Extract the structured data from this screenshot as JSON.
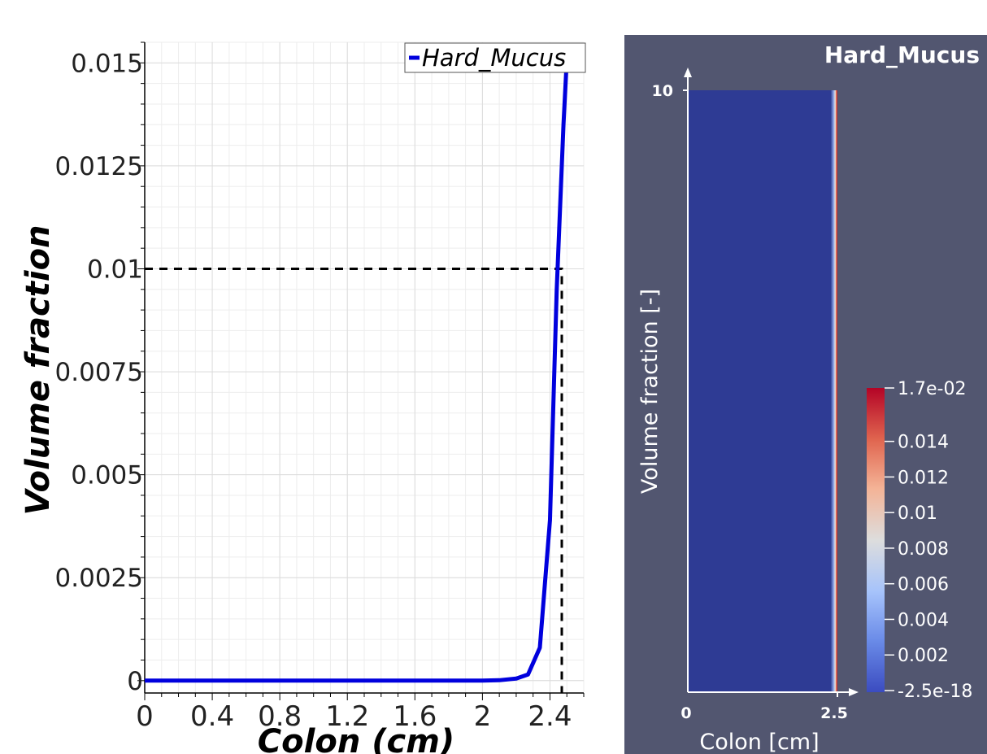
{
  "chart_data": [
    {
      "type": "line",
      "xlabel": "Colon (cm)",
      "ylabel": "Volume fraction",
      "xlim": [
        0,
        2.6
      ],
      "ylim": [
        -0.0003,
        0.0155
      ],
      "x_ticks": [
        0,
        0.4,
        0.8,
        1.2,
        1.6,
        2,
        2.4
      ],
      "x_tick_labels": [
        "0",
        "0.4",
        "0.8",
        "1.2",
        "1.6",
        "2",
        "2.4"
      ],
      "y_ticks": [
        0,
        0.0025,
        0.005,
        0.0075,
        0.01,
        0.0125,
        0.015
      ],
      "y_tick_labels": [
        "0",
        "0.0025",
        "0.005",
        "0.0075",
        "0.01",
        "0.0125",
        "0.015"
      ],
      "grid": true,
      "legend": "top-right",
      "series": [
        {
          "name": "Hard_Mucus",
          "color": "#0000dd",
          "x": [
            0,
            0.5,
            1.0,
            1.5,
            2.0,
            2.1,
            2.2,
            2.27,
            2.34,
            2.4,
            2.44,
            2.48,
            2.5
          ],
          "y": [
            0,
            0,
            0,
            0,
            0,
            1e-05,
            5e-05,
            0.00015,
            0.0008,
            0.0039,
            0.0095,
            0.0135,
            0.0157
          ]
        }
      ],
      "reference_lines": [
        {
          "style": "dashed",
          "color": "#000000",
          "points": [
            [
              0,
              0.01
            ],
            [
              2.47,
              0.01
            ],
            [
              2.47,
              -0.0003
            ]
          ]
        }
      ]
    },
    {
      "type": "heatmap",
      "title": "Hard_Mucus",
      "xlabel": "Colon [cm]",
      "ylabel": "Volume fraction [-]",
      "x_ticks": [
        "0",
        "2.5"
      ],
      "y_ticks": [
        "10"
      ],
      "xlim": [
        0,
        2.5
      ],
      "ylim": [
        0,
        10
      ],
      "colorbar": {
        "max_label": "1.7e-02",
        "min_label": "-2.5e-18",
        "tick_labels": [
          "0.014",
          "0.012",
          "0.01",
          "0.008",
          "0.006",
          "0.004",
          "0.002"
        ],
        "colors": [
          "#3b4cc0",
          "#7396f5",
          "#b0cbfc",
          "#dddddd",
          "#f6b396",
          "#e36c55",
          "#b40426"
        ]
      },
      "background": "#525670",
      "field_color": "#2e3b94"
    }
  ]
}
